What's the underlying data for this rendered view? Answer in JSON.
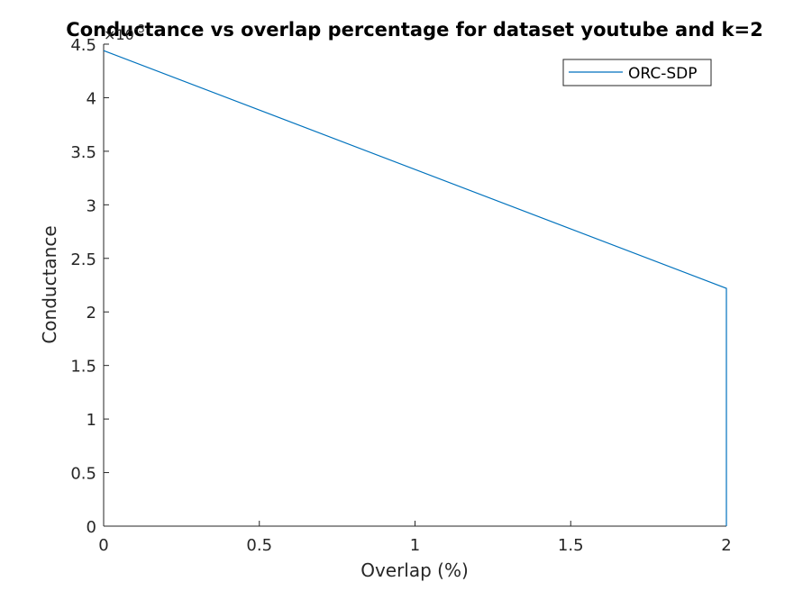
{
  "chart_data": {
    "type": "line",
    "title": "Conductance vs overlap percentage for dataset youtube and k=2",
    "xlabel": "Overlap (%)",
    "ylabel": "Conductance",
    "xlim": [
      0,
      2
    ],
    "ylim": [
      0,
      0.0045
    ],
    "x_ticks": [
      0,
      0.5,
      1,
      1.5,
      2
    ],
    "x_tick_labels": [
      "0",
      "0.5",
      "1",
      "1.5",
      "2"
    ],
    "y_ticks": [
      0,
      0.0005,
      0.001,
      0.0015,
      0.002,
      0.0025,
      0.003,
      0.0035,
      0.004,
      0.0045
    ],
    "y_tick_labels": [
      "0",
      "0.5",
      "1",
      "1.5",
      "2",
      "2.5",
      "3",
      "3.5",
      "4",
      "4.5"
    ],
    "y_exponent_label": "×10",
    "y_exponent_power": "-3",
    "grid": false,
    "legend_position": "top-right",
    "series": [
      {
        "name": "ORC-SDP",
        "color": "#0072BD",
        "x": [
          0,
          2,
          2
        ],
        "y": [
          0.00444,
          0.00222,
          0
        ]
      }
    ]
  }
}
